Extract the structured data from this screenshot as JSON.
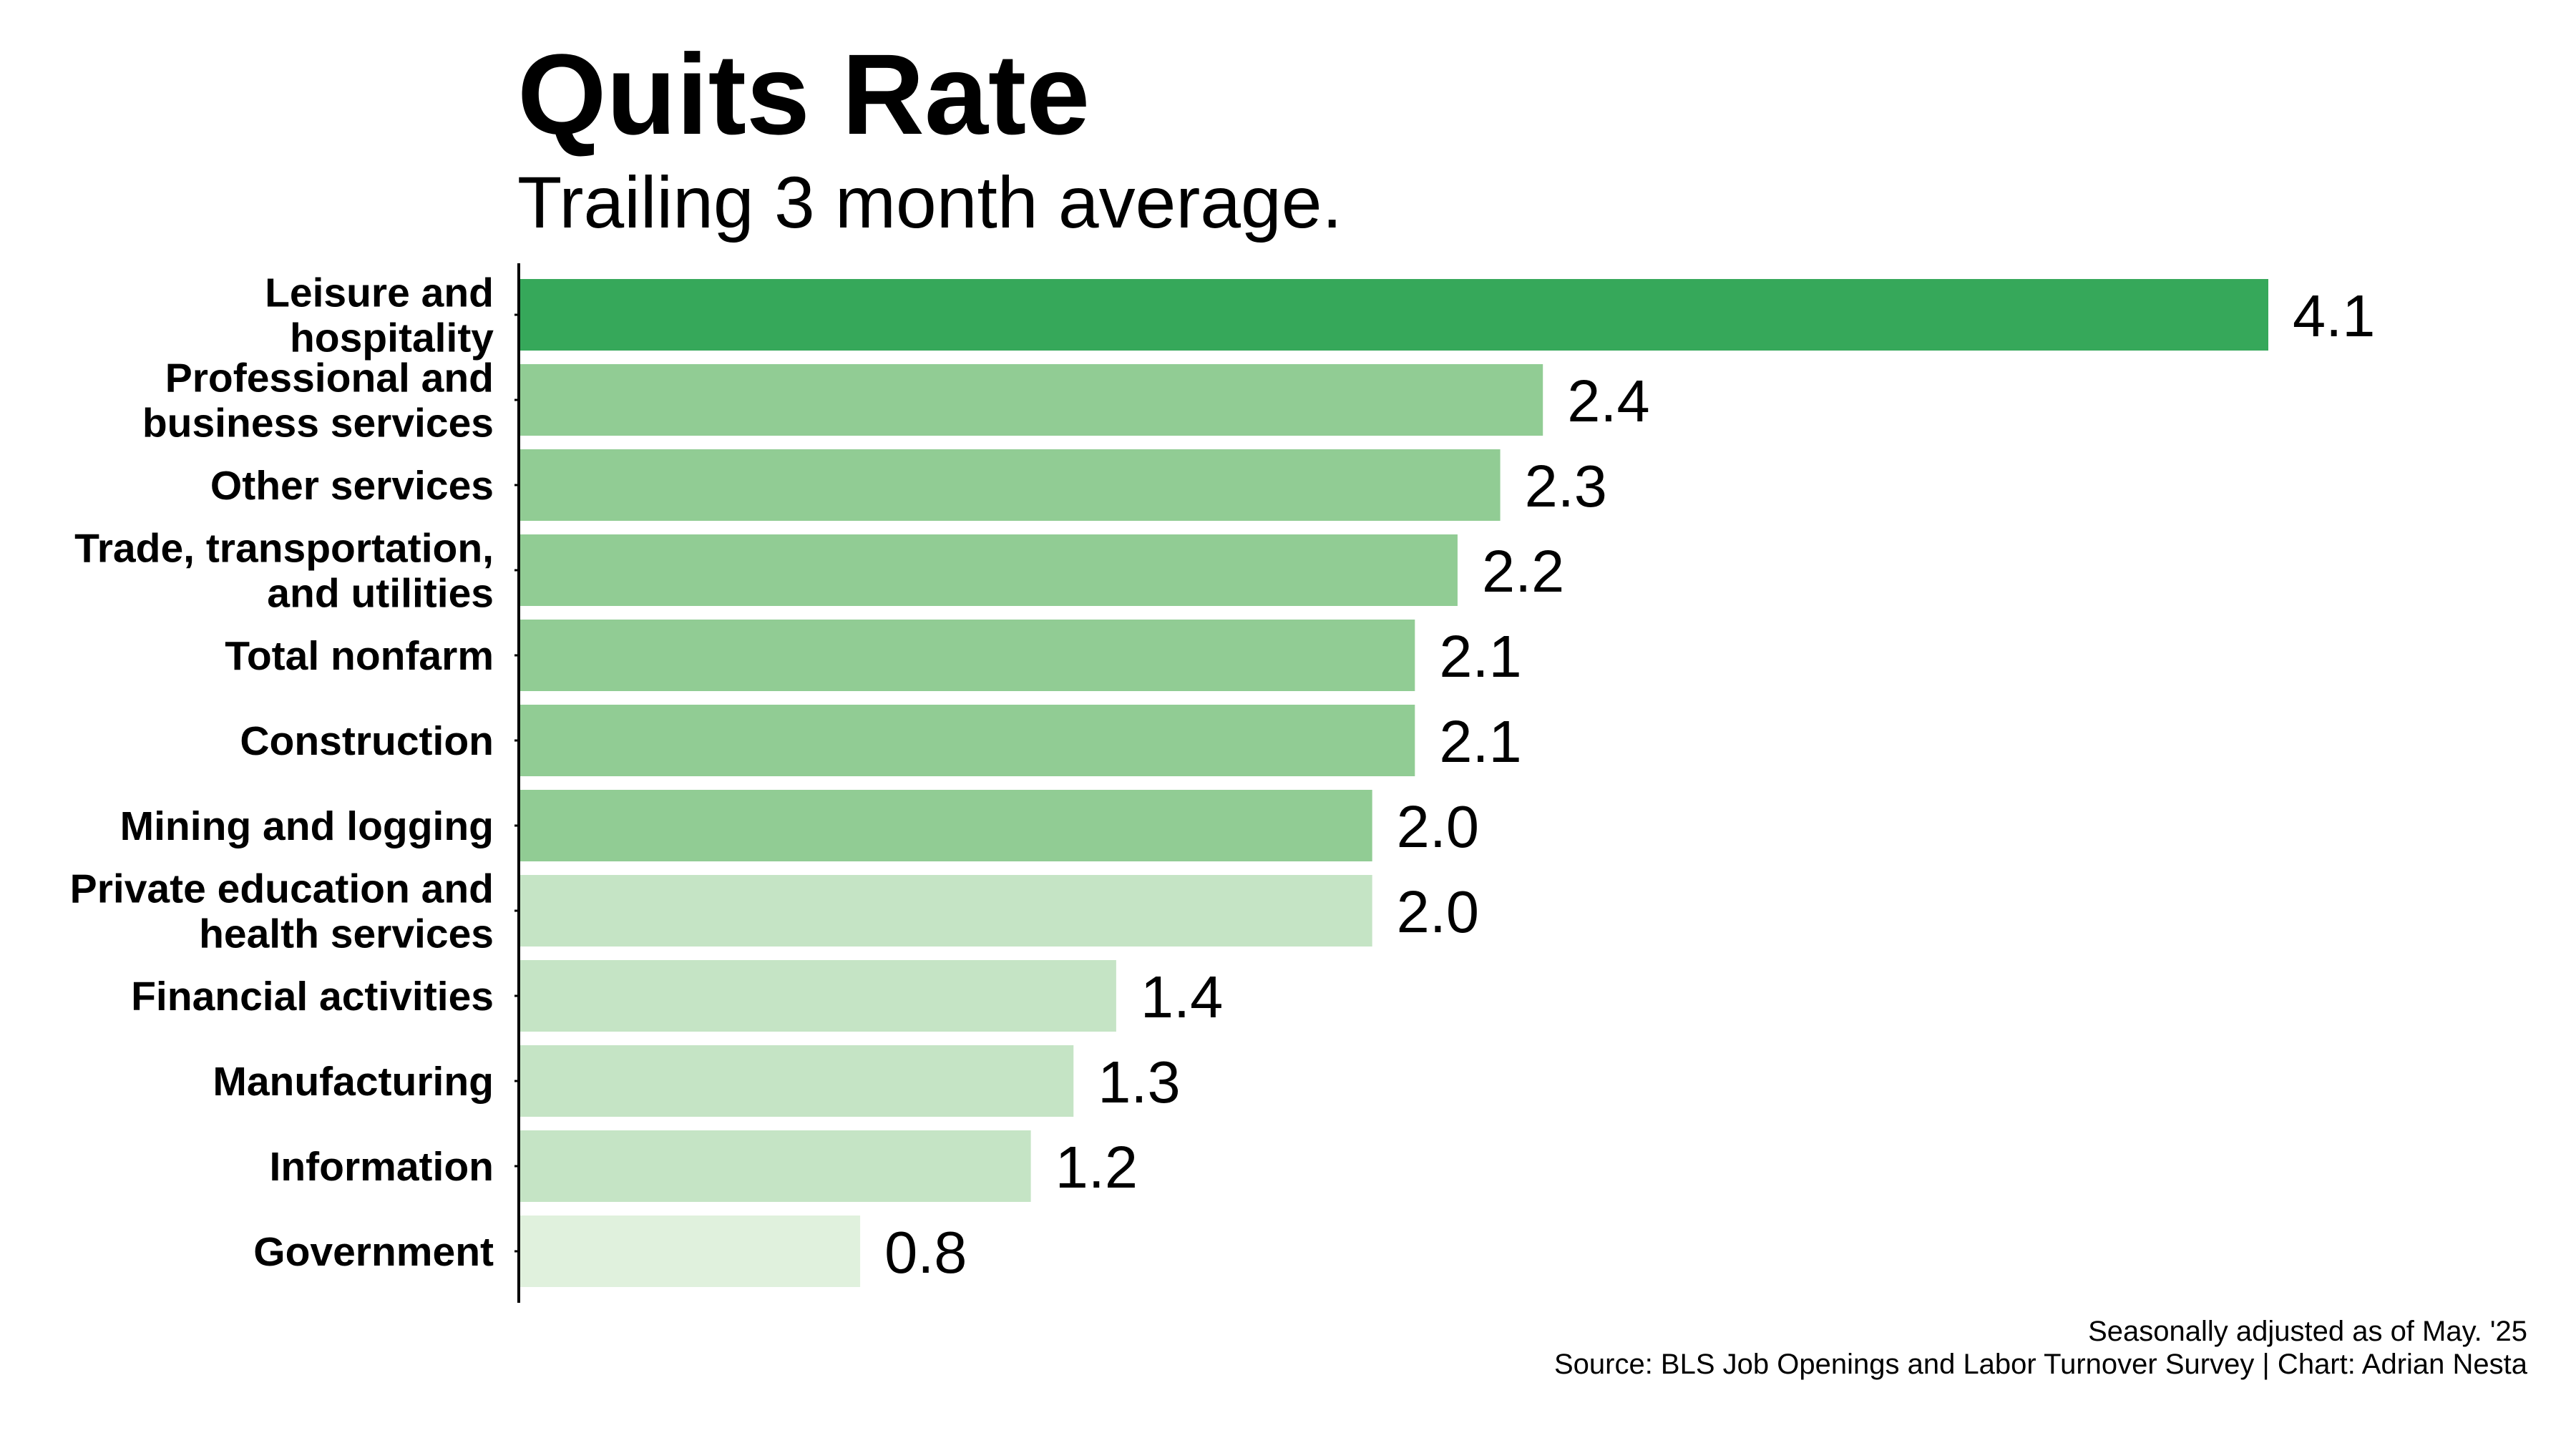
{
  "chart_data": {
    "type": "bar",
    "orientation": "horizontal",
    "title": "Quits Rate",
    "subtitle": "Trailing 3 month average.",
    "categories": [
      "Leisure and hospitality",
      "Professional and business services",
      "Other services",
      "Trade, transportation, and utilities",
      "Total nonfarm",
      "Construction",
      "Mining and logging",
      "Private education and health services",
      "Financial activities",
      "Manufacturing",
      "Information",
      "Government"
    ],
    "category_lines": [
      [
        "Leisure and",
        "hospitality"
      ],
      [
        "Professional and",
        "business services"
      ],
      [
        "Other services"
      ],
      [
        "Trade, transportation,",
        "and utilities"
      ],
      [
        "Total nonfarm"
      ],
      [
        "Construction"
      ],
      [
        "Mining and logging"
      ],
      [
        "Private education and",
        "health services"
      ],
      [
        "Financial activities"
      ],
      [
        "Manufacturing"
      ],
      [
        "Information"
      ],
      [
        "Government"
      ]
    ],
    "values": [
      4.1,
      2.4,
      2.3,
      2.2,
      2.1,
      2.1,
      2.0,
      2.0,
      1.4,
      1.3,
      1.2,
      0.8
    ],
    "value_labels": [
      "4.1",
      "2.4",
      "2.3",
      "2.2",
      "2.1",
      "2.1",
      "2.0",
      "2.0",
      "1.4",
      "1.3",
      "1.2",
      "0.8"
    ],
    "bar_colors": [
      "#36a85a",
      "#91cc94",
      "#91cc94",
      "#91cc94",
      "#91cc94",
      "#91cc94",
      "#91cc94",
      "#c5e4c5",
      "#c5e4c5",
      "#c5e4c5",
      "#c5e4c5",
      "#e0f1dd"
    ],
    "xlim": [
      0,
      4.1
    ],
    "grid": false,
    "legend": "none"
  },
  "footer": {
    "note": "Seasonally adjusted as of May. '25",
    "source": "Source: BLS Job Openings and Labor Turnover Survey | Chart: Adrian Nesta"
  }
}
